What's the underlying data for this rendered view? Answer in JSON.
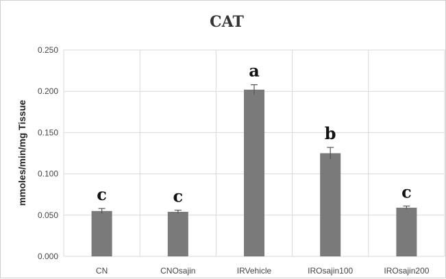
{
  "chart_data": {
    "type": "bar",
    "title": "CAT",
    "xlabel": "",
    "ylabel": "mmoles/min/mg Tissue",
    "categories": [
      "CN",
      "CNOsajin",
      "IRVehicle",
      "IROsajin100",
      "IROsajin200"
    ],
    "values": [
      0.055,
      0.054,
      0.202,
      0.125,
      0.059
    ],
    "errors": [
      0.003,
      0.002,
      0.006,
      0.007,
      0.002
    ],
    "annotations": [
      "c",
      "c",
      "a",
      "b",
      "c"
    ],
    "ylim": [
      0,
      0.25
    ],
    "yticks": [
      "0.000",
      "0.050",
      "0.100",
      "0.150",
      "0.200",
      "0.250"
    ],
    "grid": true,
    "bar_color": "#7a7a7a",
    "grid_color": "#d9d9d9"
  }
}
